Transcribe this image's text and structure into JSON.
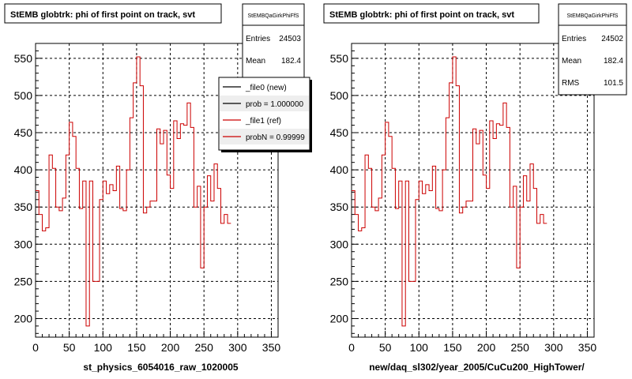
{
  "chart_data": [
    {
      "type": "line",
      "title": "StEMB globtrk: phi of first point on track, svt",
      "xlabel": "st_physics_6054016_raw_1020005",
      "ylabel": "",
      "xlim": [
        0,
        360
      ],
      "ylim": [
        175,
        570
      ],
      "x_ticks": [
        "0",
        "50",
        "100",
        "150",
        "200",
        "250",
        "300",
        "350"
      ],
      "y_ticks": [
        "200",
        "250",
        "300",
        "350",
        "400",
        "450",
        "500",
        "550"
      ],
      "grid": true,
      "stats": {
        "name": "StEMBQaGirkPhiFfS",
        "rows": [
          {
            "label": "Entries",
            "value": "24503"
          },
          {
            "label": "Mean",
            "value": "182.4"
          }
        ]
      },
      "legend": [
        {
          "label": "_file0 (new)",
          "color": "#000000"
        },
        {
          "label": "prob = 1.000000",
          "color": "#000000"
        },
        {
          "label": "_file1 (ref)",
          "color": "#cc0000"
        },
        {
          "label": "probN = 0.99999",
          "color": "#cc0000"
        }
      ],
      "bin_width": 5,
      "series": [
        {
          "color": "#cc0000",
          "values": [
            372,
            340,
            318,
            322,
            420,
            402,
            350,
            345,
            362,
            420,
            464,
            445,
            402,
            348,
            385,
            190,
            385,
            250,
            250,
            360,
            385,
            368,
            380,
            372,
            405,
            348,
            345,
            400,
            470,
            517,
            552,
            513,
            342,
            350,
            358,
            358,
            455,
            435,
            453,
            393,
            375,
            466,
            442,
            462,
            460,
            490,
            457,
            350,
            378,
            268,
            350,
            392,
            358,
            408,
            375,
            328,
            340,
            328
          ]
        }
      ]
    },
    {
      "type": "line",
      "title": "StEMB globtrk: phi of first point on track, svt",
      "xlabel": "new/daq_sl302/year_2005/CuCu200_HighTower/",
      "ylabel": "",
      "xlim": [
        0,
        360
      ],
      "ylim": [
        175,
        570
      ],
      "x_ticks": [
        "0",
        "50",
        "100",
        "150",
        "200",
        "250",
        "300",
        "350"
      ],
      "y_ticks": [
        "200",
        "250",
        "300",
        "350",
        "400",
        "450",
        "500",
        "550"
      ],
      "grid": true,
      "stats": {
        "name": "StEMBQaGirkPhiFfS",
        "rows": [
          {
            "label": "Entries",
            "value": "24502"
          },
          {
            "label": "Mean",
            "value": "182.4"
          },
          {
            "label": "RMS",
            "value": "101.5"
          }
        ]
      },
      "bin_width": 5,
      "series": [
        {
          "color": "#cc0000",
          "values": [
            372,
            340,
            318,
            322,
            420,
            402,
            350,
            345,
            362,
            420,
            464,
            445,
            402,
            348,
            385,
            190,
            385,
            250,
            250,
            360,
            385,
            368,
            380,
            372,
            405,
            348,
            345,
            400,
            470,
            517,
            552,
            513,
            342,
            350,
            358,
            358,
            455,
            435,
            453,
            393,
            375,
            466,
            442,
            462,
            460,
            490,
            457,
            350,
            378,
            268,
            350,
            392,
            358,
            408,
            375,
            328,
            340,
            328
          ]
        }
      ]
    }
  ]
}
